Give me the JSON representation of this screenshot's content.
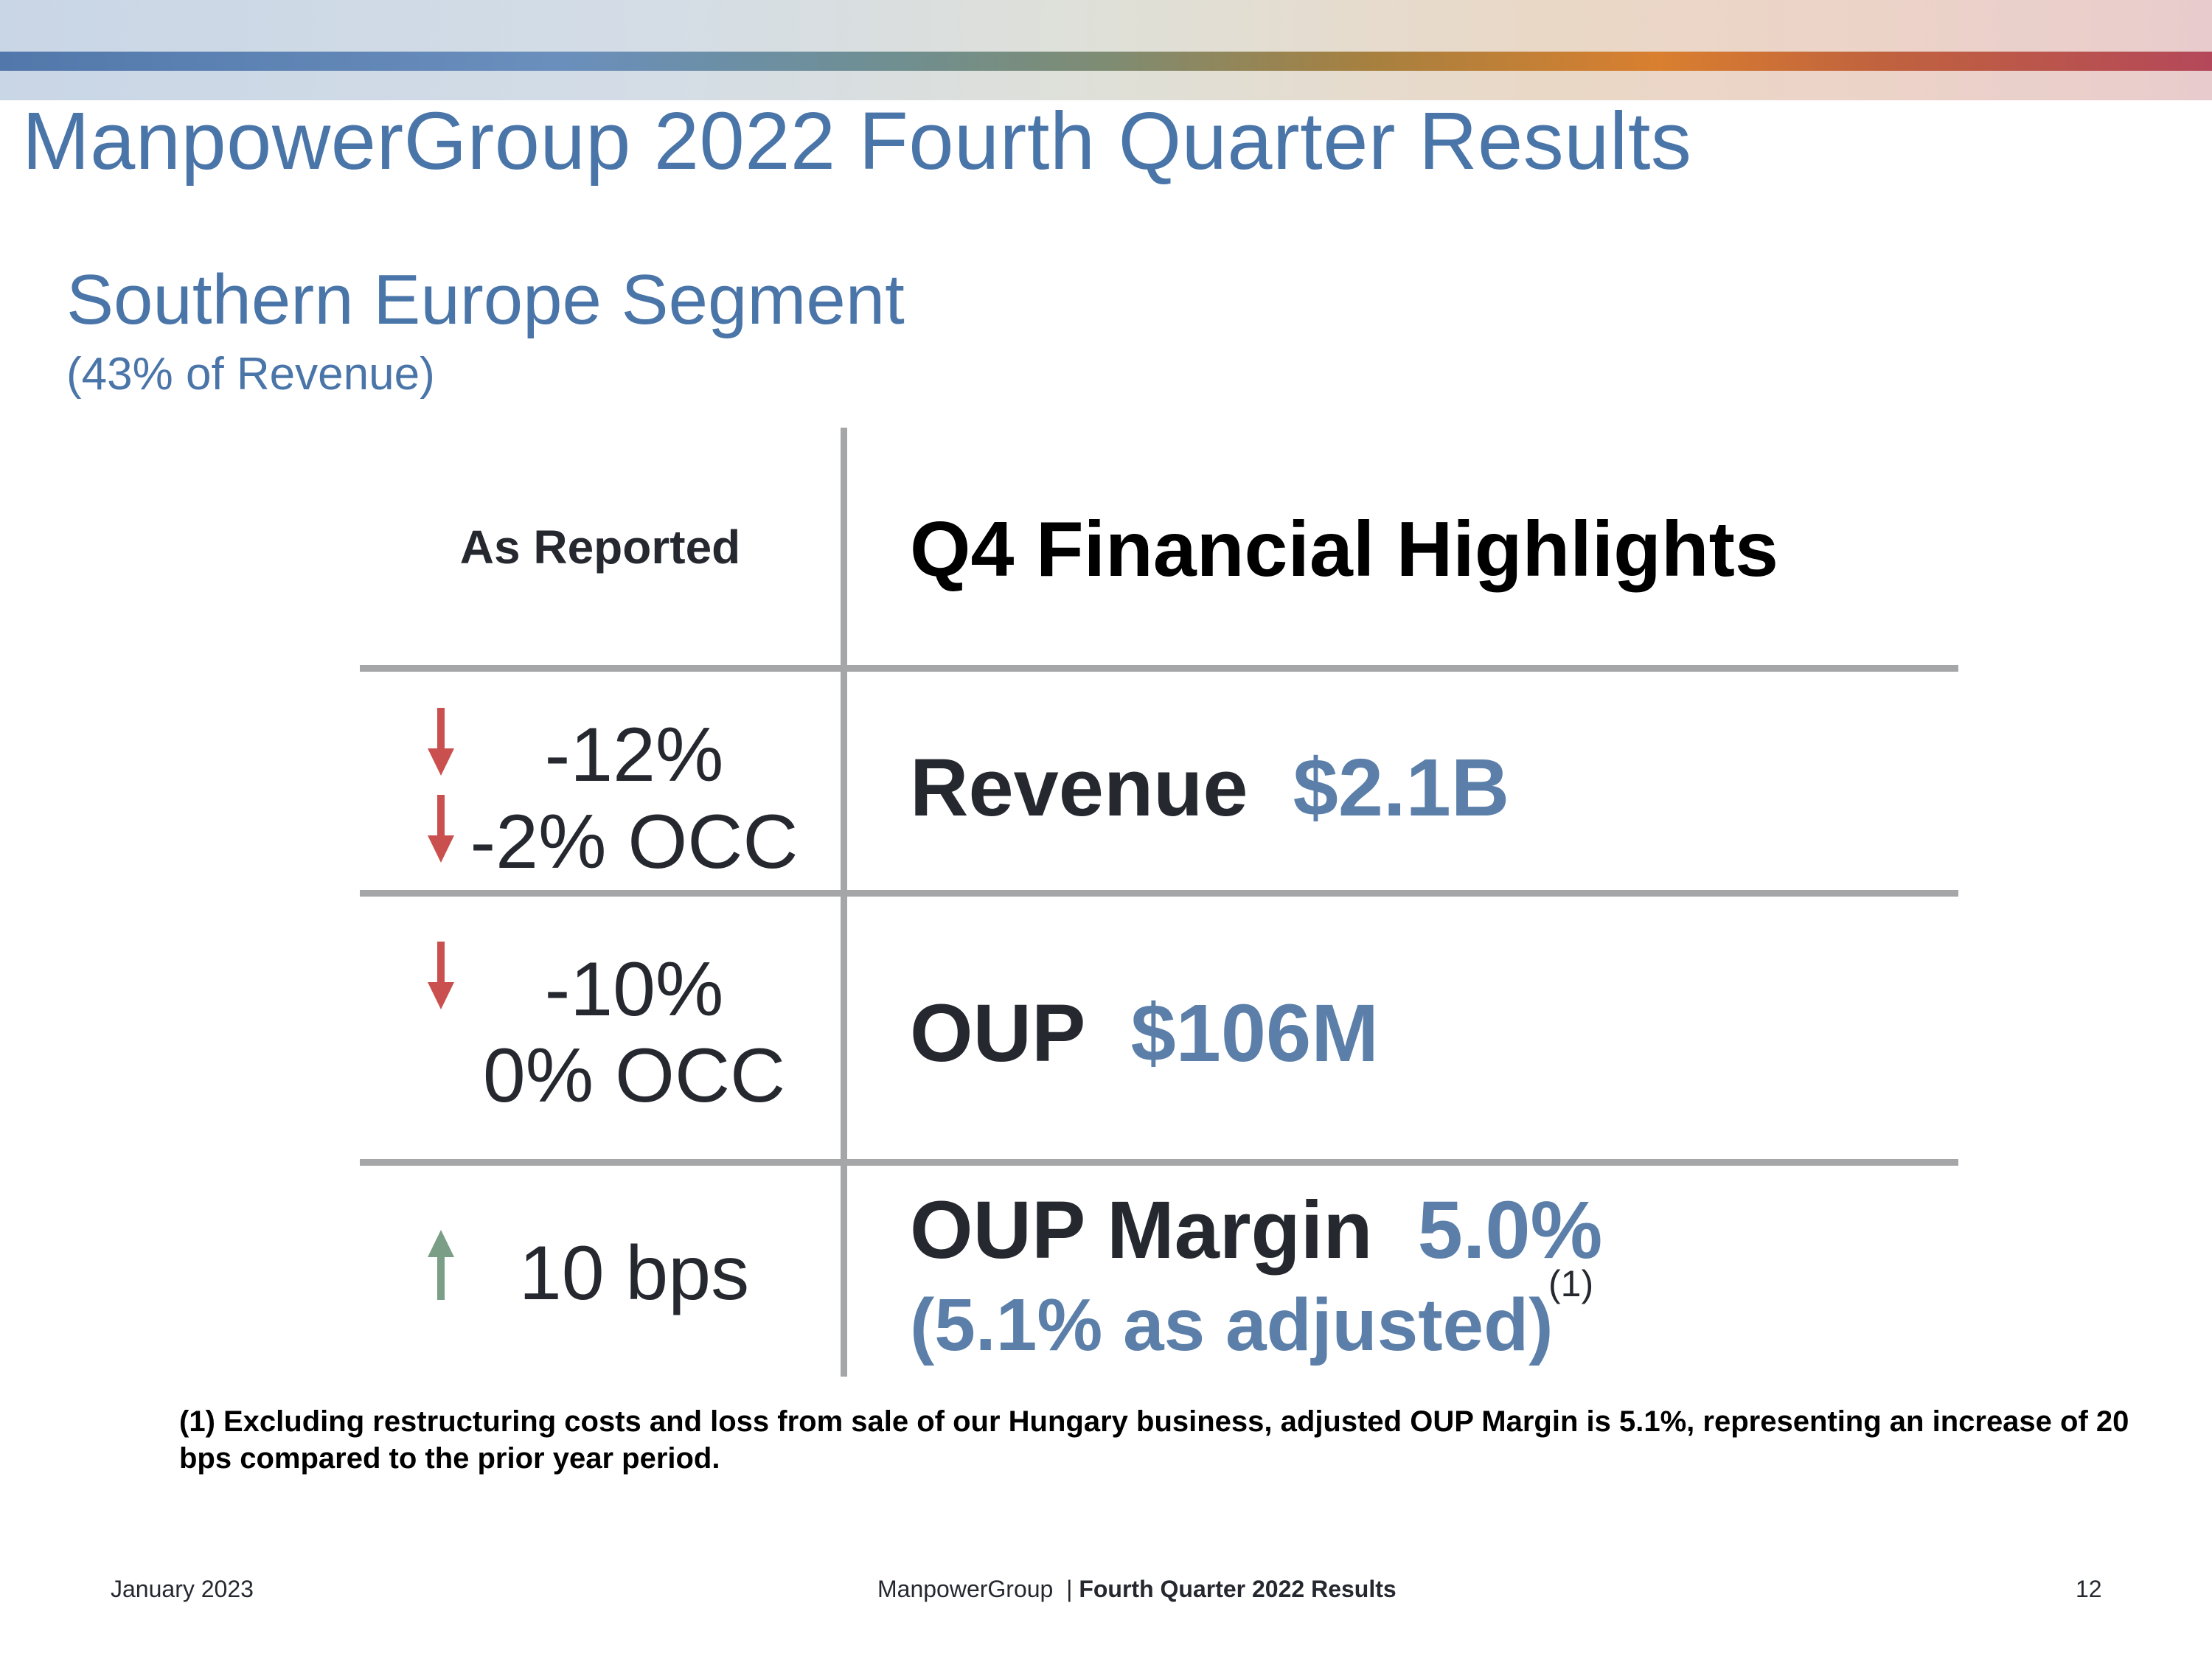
{
  "header": {
    "title": "ManpowerGroup 2022 Fourth Quarter Results"
  },
  "segment": {
    "title": "Southern Europe Segment",
    "subtitle": "(43% of Revenue)"
  },
  "table": {
    "left_header": "As Reported",
    "right_header": "Q4 Financial Highlights",
    "rows": [
      {
        "values": [
          "-12%",
          "-2% OCC"
        ],
        "trend": [
          "down",
          "down"
        ],
        "metric_label": "Revenue",
        "metric_value": "$2.1B"
      },
      {
        "values": [
          "-10%",
          "0% OCC"
        ],
        "trend": [
          "down"
        ],
        "metric_label": "OUP",
        "metric_value": "$106M"
      },
      {
        "values": [
          "10 bps"
        ],
        "trend": [
          "up"
        ],
        "metric_label": "OUP Margin",
        "metric_value": "5.0%",
        "adjusted": "(5.1% as adjusted)",
        "footnote_marker": "(1)"
      }
    ]
  },
  "footnote": "(1) Excluding restructuring costs and loss from sale of our Hungary business, adjusted OUP Margin is 5.1%, representing an increase of 20 bps compared to the prior year period.",
  "footer": {
    "date": "January 2023",
    "company": "ManpowerGroup",
    "separator": "|",
    "report": "Fourth Quarter 2022 Results",
    "page": "12"
  },
  "colors": {
    "title_blue": "#4a75a8",
    "value_blue": "#5b7fa9",
    "down_arrow": "#c9504f",
    "up_arrow": "#7a9e86",
    "divider": "#a4a6a8"
  },
  "icons": {
    "down": "arrow-down-icon",
    "up": "arrow-up-icon"
  }
}
